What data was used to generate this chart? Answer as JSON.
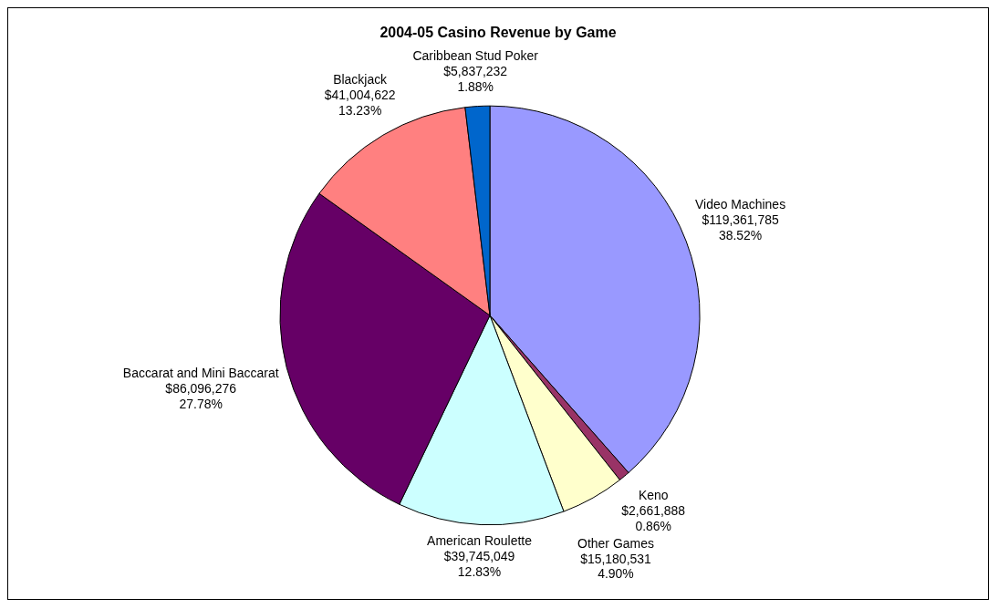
{
  "chart_data": {
    "type": "pie",
    "title": "2004-05 Casino Revenue by Game",
    "categories": [
      "Video Machines",
      "Keno",
      "Other Games",
      "American Roulette",
      "Baccarat and Mini Baccarat",
      "Blackjack",
      "Caribbean Stud Poker"
    ],
    "values": [
      119361785,
      2661888,
      15180531,
      39745049,
      86096276,
      41004622,
      5837232
    ],
    "colors": [
      "#9999ff",
      "#993366",
      "#ffffcc",
      "#ccffff",
      "#660066",
      "#ff8080",
      "#0066cc"
    ],
    "value_labels": [
      "$119,361,785\n38.52%",
      "$2,661,888\n0.86%",
      "$15,180,531\n4.90%",
      "$39,745,049\n12.83%",
      "$86,096,276\n27.78%",
      "$41,004,622\n13.23%",
      "$5,837,232\n1.88%"
    ],
    "legend": false
  }
}
